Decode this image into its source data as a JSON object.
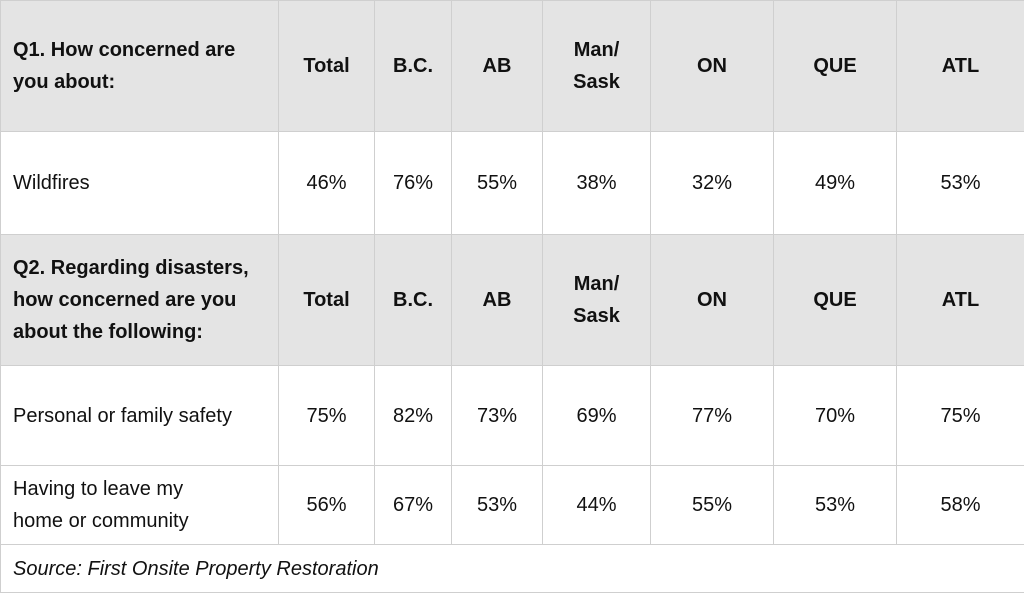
{
  "columns": [
    "Total",
    "B.C.",
    "AB",
    "Man/ Sask",
    "ON",
    "QUE",
    "ATL"
  ],
  "q1": {
    "question_lines": [
      "Q1. How concerned are",
      "you about:"
    ],
    "rows": [
      {
        "label_lines": [
          "Wildfires"
        ],
        "values": [
          "46%",
          "76%",
          "55%",
          "38%",
          "32%",
          "49%",
          "53%"
        ]
      }
    ]
  },
  "q2": {
    "question_lines": [
      "Q2. Regarding disasters,",
      "how concerned are you",
      "about the following:"
    ],
    "rows": [
      {
        "label_lines": [
          "Personal or family safety"
        ],
        "values": [
          "75%",
          "82%",
          "73%",
          "69%",
          "77%",
          "70%",
          "75%"
        ]
      },
      {
        "label_lines": [
          "Having to leave my",
          "home or community"
        ],
        "values": [
          "56%",
          "67%",
          "53%",
          "44%",
          "55%",
          "53%",
          "58%"
        ]
      }
    ]
  },
  "source": "Source: First Onsite Property Restoration"
}
